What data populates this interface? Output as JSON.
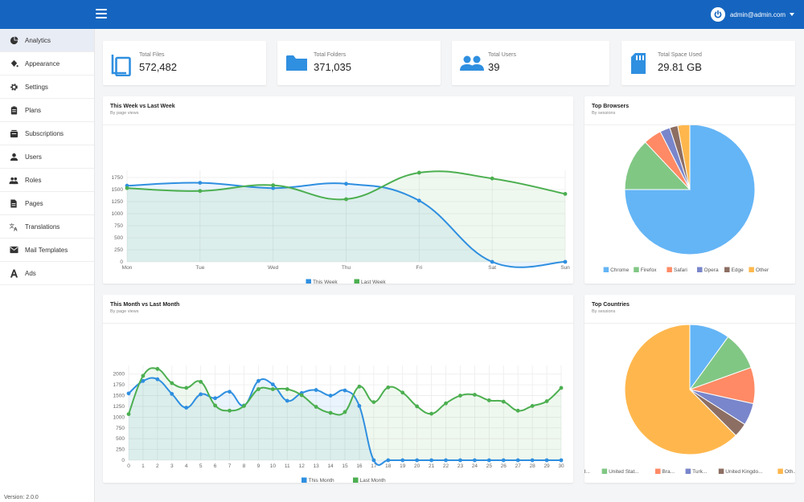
{
  "header": {
    "user_email": "admin@admin.com"
  },
  "sidebar": {
    "items": [
      {
        "label": "Analytics",
        "icon": "pie-chart-icon"
      },
      {
        "label": "Appearance",
        "icon": "paint-bucket-icon"
      },
      {
        "label": "Settings",
        "icon": "gear-icon"
      },
      {
        "label": "Plans",
        "icon": "clipboard-icon"
      },
      {
        "label": "Subscriptions",
        "icon": "cart-icon"
      },
      {
        "label": "Users",
        "icon": "user-icon"
      },
      {
        "label": "Roles",
        "icon": "users-icon"
      },
      {
        "label": "Pages",
        "icon": "document-icon"
      },
      {
        "label": "Translations",
        "icon": "translate-icon"
      },
      {
        "label": "Mail Templates",
        "icon": "mail-icon"
      },
      {
        "label": "Ads",
        "icon": "ads-icon"
      }
    ],
    "version": "Version: 2.0.0"
  },
  "stats": [
    {
      "label": "Total Files",
      "value": "572,482",
      "icon": "files-icon"
    },
    {
      "label": "Total Folders",
      "value": "371,035",
      "icon": "folder-icon"
    },
    {
      "label": "Total Users",
      "value": "39",
      "icon": "users-icon"
    },
    {
      "label": "Total Space Used",
      "value": "29.81 GB",
      "icon": "sd-card-icon"
    }
  ],
  "colors": {
    "primary": "#1565c0",
    "series_a": "#2f8fe0",
    "series_b": "#4caf50"
  },
  "chart_data": [
    {
      "type": "line",
      "title": "This Week vs Last Week",
      "subtitle": "By page views",
      "categories": [
        "Mon",
        "Tue",
        "Wed",
        "Thu",
        "Fri",
        "Sat",
        "Sun"
      ],
      "ylim": [
        0,
        1900
      ],
      "yticks": [
        "0",
        "250",
        "500",
        "750",
        "1000",
        "1250",
        "1500",
        "1750"
      ],
      "series": [
        {
          "name": "This Week",
          "color": "#2f8fe0",
          "values": [
            1580,
            1640,
            1530,
            1620,
            1270,
            0,
            0
          ]
        },
        {
          "name": "Last Week",
          "color": "#4caf50",
          "values": [
            1530,
            1470,
            1590,
            1300,
            1850,
            1730,
            1410
          ]
        }
      ]
    },
    {
      "type": "line",
      "title": "This Month vs Last Month",
      "subtitle": "By page views",
      "categories": [
        "0",
        "1",
        "2",
        "3",
        "4",
        "5",
        "6",
        "7",
        "8",
        "9",
        "10",
        "11",
        "12",
        "13",
        "14",
        "15",
        "16",
        "17",
        "18",
        "19",
        "20",
        "21",
        "22",
        "23",
        "24",
        "25",
        "26",
        "27",
        "28",
        "29",
        "30"
      ],
      "ylim": [
        0,
        2200
      ],
      "yticks": [
        "0",
        "250",
        "500",
        "750",
        "1000",
        "1250",
        "1500",
        "1750",
        "2000"
      ],
      "series": [
        {
          "name": "This Month",
          "color": "#2f8fe0",
          "values": [
            1550,
            1840,
            1880,
            1540,
            1220,
            1530,
            1440,
            1590,
            1270,
            1840,
            1760,
            1380,
            1560,
            1630,
            1500,
            1620,
            1260,
            0,
            0,
            0,
            0,
            0,
            0,
            0,
            0,
            0,
            0,
            0,
            0,
            0,
            0
          ]
        },
        {
          "name": "Last Month",
          "color": "#4caf50",
          "values": [
            1070,
            1960,
            2120,
            1790,
            1680,
            1820,
            1270,
            1150,
            1260,
            1650,
            1650,
            1650,
            1510,
            1240,
            1100,
            1120,
            1710,
            1350,
            1690,
            1570,
            1250,
            1080,
            1320,
            1500,
            1520,
            1390,
            1360,
            1150,
            1260,
            1370,
            1680
          ]
        }
      ]
    },
    {
      "type": "pie",
      "title": "Top Browsers",
      "subtitle": "By sessions",
      "categories": [
        "Chrome",
        "Firefox",
        "Safari",
        "Opera",
        "Edge",
        "Other"
      ],
      "values": [
        75,
        13,
        4.5,
        2.5,
        2,
        3
      ],
      "colors": [
        "#64b5f6",
        "#81c784",
        "#ff8a65",
        "#7986cb",
        "#8d6e63",
        "#ffb74d"
      ]
    },
    {
      "type": "pie",
      "title": "Top Countries",
      "subtitle": "By sessions",
      "categories": [
        "Ind...",
        "United Stat...",
        "Bra...",
        "Turk...",
        "United Kingdo...",
        "Oth..."
      ],
      "values": [
        10,
        9.5,
        9,
        5.5,
        3.5,
        62.5
      ],
      "colors": [
        "#64b5f6",
        "#81c784",
        "#ff8a65",
        "#7986cb",
        "#8d6e63",
        "#ffb74d"
      ]
    }
  ]
}
